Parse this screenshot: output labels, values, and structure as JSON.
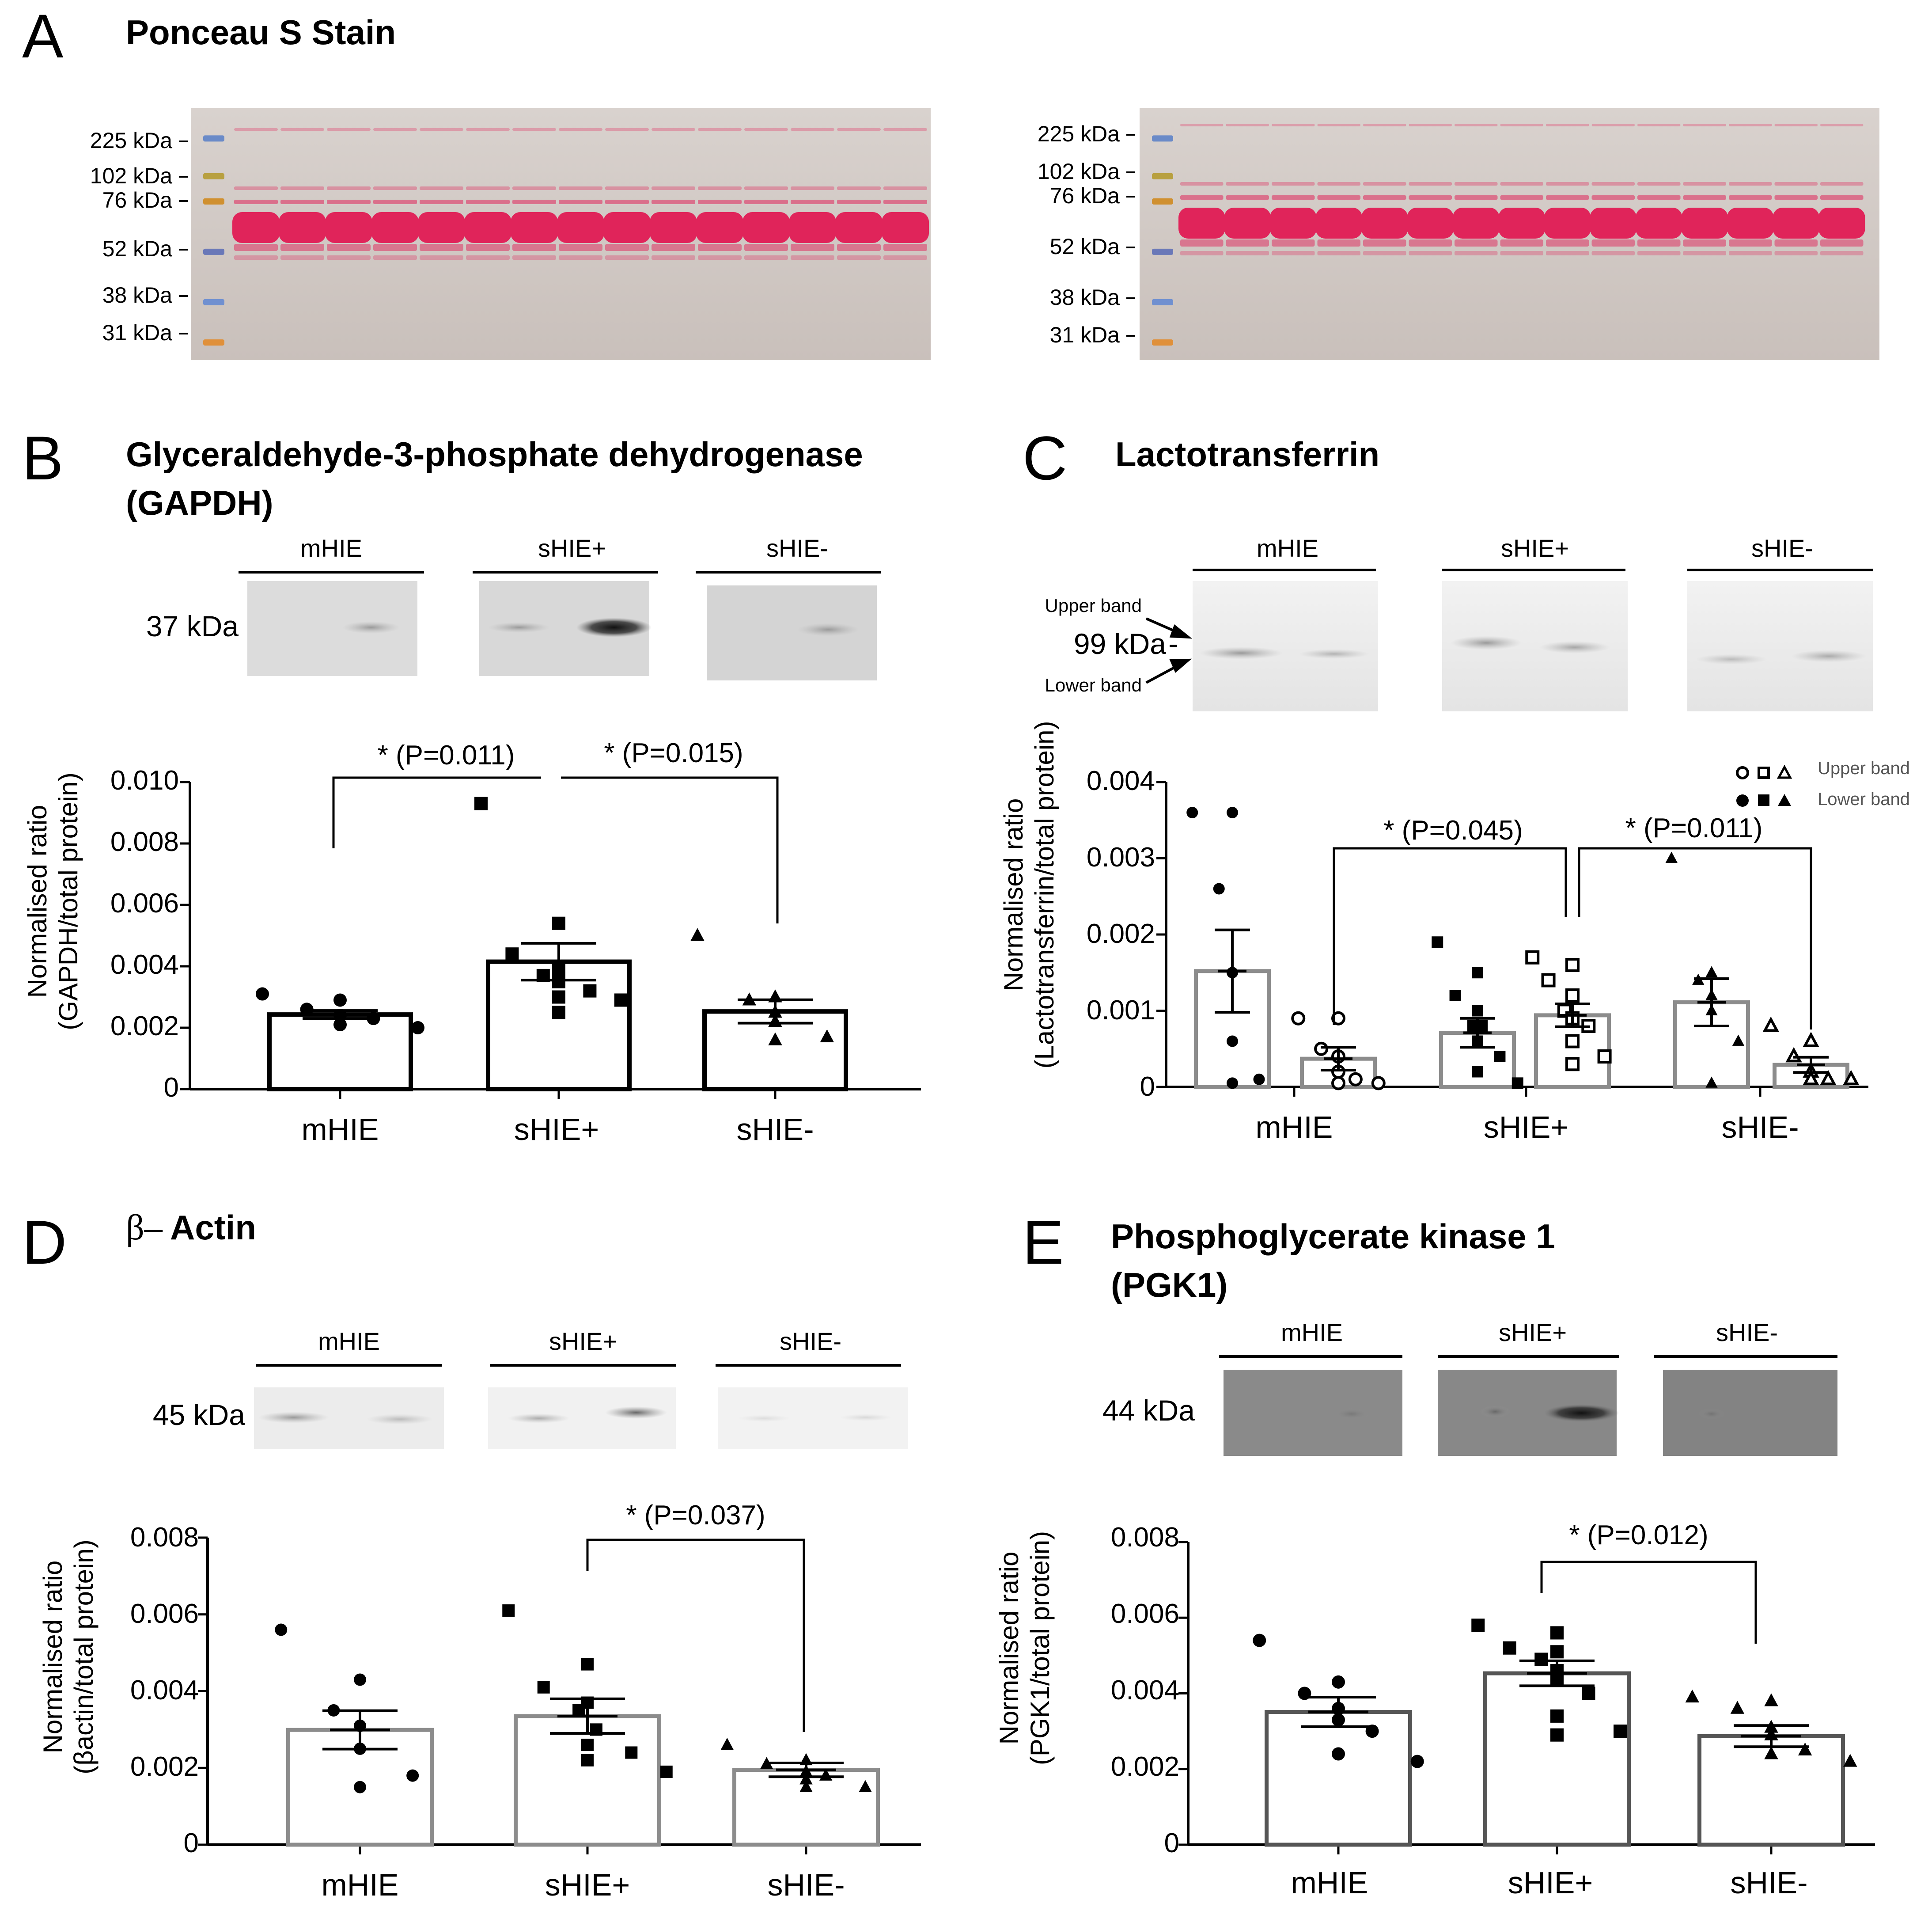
{
  "colors": {
    "black_bar": "#000000",
    "gray_bar": "#8c8c8c",
    "dark_gray_bar": "#555555",
    "ponceau_pink": "#e0245a",
    "membrane": "#d2c8c2"
  },
  "panelA": {
    "letter": "A",
    "title": "Ponceau S Stain",
    "ladder_left": [
      "225 kDa",
      "102 kDa",
      "76 kDa",
      "52 kDa",
      "38 kDa",
      "31 kDa"
    ],
    "ladder_right": [
      "225 kDa",
      "102 kDa",
      "76 kDa",
      "52 kDa",
      "38 kDa",
      "31 kDa"
    ]
  },
  "panelB": {
    "letter": "B",
    "title_line1": "Glyceraldehyde-3-phosphate dehydrogenase",
    "title_line2": "(GAPDH)",
    "mw_label": "37 kDa",
    "blot_groups": [
      "mHIE",
      "sHIE+",
      "sHIE-"
    ],
    "ylabel_line1": "Normalised ratio",
    "ylabel_line2": "(GAPDH/total protein)",
    "yticks": [
      "0",
      "0.002",
      "0.004",
      "0.006",
      "0.008",
      "0.010"
    ],
    "sig1": "* (P=0.011)",
    "sig2": "* (P=0.015)"
  },
  "panelC": {
    "letter": "C",
    "title": "Lactotransferrin",
    "mw_label": "99 kDa",
    "upper_band": "Upper band",
    "lower_band": "Lower band",
    "blot_groups": [
      "mHIE",
      "sHIE+",
      "sHIE-"
    ],
    "ylabel_line1": "Normalised ratio",
    "ylabel_line2": "(Lactotransferrin/total protein)",
    "yticks": [
      "0",
      "0.001",
      "0.002",
      "0.003",
      "0.004"
    ],
    "legend_upper": "Upper band",
    "legend_lower": "Lower band",
    "sig1": "* (P=0.045)",
    "sig2": "* (P=0.011)"
  },
  "panelD": {
    "letter": "D",
    "title_prefix": "β–",
    "title": "Actin",
    "mw_label": "45 kDa",
    "blot_groups": [
      "mHIE",
      "sHIE+",
      "sHIE-"
    ],
    "ylabel_line1": "Normalised ratio",
    "ylabel_line2": "(βactin/total protein)",
    "yticks": [
      "0",
      "0.002",
      "0.004",
      "0.006",
      "0.008"
    ],
    "sig1": "* (P=0.037)"
  },
  "panelE": {
    "letter": "E",
    "title_line1": "Phosphoglycerate kinase 1",
    "title_line2": "(PGK1)",
    "mw_label": "44 kDa",
    "blot_groups": [
      "mHIE",
      "sHIE+",
      "sHIE-"
    ],
    "ylabel_line1": "Normalised ratio",
    "ylabel_line2": "(PGK1/total protein)",
    "yticks": [
      "0",
      "0.002",
      "0.004",
      "0.006",
      "0.008"
    ],
    "sig1": "* (P=0.012)"
  },
  "chart_data": [
    {
      "panel": "B",
      "type": "bar",
      "title": "Glyceraldehyde-3-phosphate dehydrogenase (GAPDH)",
      "ylabel": "Normalised ratio (GAPDH/total protein)",
      "xlabel": "",
      "ylim": [
        0,
        0.01
      ],
      "categories": [
        "mHIE",
        "sHIE+",
        "sHIE-"
      ],
      "values": [
        0.00243,
        0.00415,
        0.00253
      ],
      "sem": [
        0.00013,
        0.0006,
        0.00038
      ],
      "markers": [
        "circle",
        "square",
        "triangle"
      ],
      "points": [
        [
          0.0031,
          0.0029,
          0.0026,
          0.0024,
          0.0024,
          0.0023,
          0.0021,
          0.002
        ],
        [
          0.0093,
          0.0054,
          0.0044,
          0.004,
          0.0037,
          0.0036,
          0.0035,
          0.0032,
          0.003,
          0.0029,
          0.0025
        ],
        [
          0.005,
          0.003,
          0.0029,
          0.0025,
          0.0022,
          0.0017,
          0.0016
        ]
      ],
      "significance": [
        {
          "from": "mHIE",
          "to": "sHIE+",
          "label": "* (P=0.011)"
        },
        {
          "from": "sHIE+",
          "to": "sHIE-",
          "label": "* (P=0.015)"
        }
      ]
    },
    {
      "panel": "C",
      "type": "bar",
      "title": "Lactotransferrin",
      "ylabel": "Normalised ratio (Lactotransferrin/total protein)",
      "xlabel": "",
      "ylim": [
        0,
        0.004
      ],
      "categories": [
        "mHIE",
        "sHIE+",
        "sHIE-"
      ],
      "series": [
        {
          "name": "Lower band",
          "fill": "solid",
          "values": [
            0.00152,
            0.00071,
            0.00111
          ],
          "sem": [
            0.00054,
            0.00019,
            0.00031
          ],
          "points": [
            [
              0.0036,
              0.0036,
              0.0026,
              0.0015,
              0.0006,
              0.0001,
              5e-05
            ],
            [
              0.0019,
              0.0015,
              0.0012,
              0.001,
              0.0008,
              0.0008,
              0.0006,
              0.0004,
              0.0002,
              5e-05
            ],
            [
              0.003,
              0.0015,
              0.0014,
              0.0012,
              0.001,
              0.0006,
              5e-05
            ]
          ]
        },
        {
          "name": "Upper band",
          "fill": "open",
          "values": [
            0.00037,
            0.00094,
            0.00029
          ],
          "sem": [
            0.00015,
            0.00015,
            0.0001
          ],
          "points": [
            [
              0.0009,
              0.0009,
              0.0005,
              0.0004,
              0.0002,
              0.0001,
              5e-05,
              5e-05
            ],
            [
              0.0017,
              0.0016,
              0.0014,
              0.0012,
              0.001,
              0.0009,
              0.0009,
              0.0008,
              0.0006,
              0.0004,
              0.0003
            ],
            [
              0.0008,
              0.0006,
              0.0004,
              0.0002,
              0.0002,
              0.0001,
              0.0001,
              0.0001
            ]
          ]
        }
      ],
      "significance": [
        {
          "from": "mHIE upper",
          "to": "sHIE+ upper",
          "label": "* (P=0.045)"
        },
        {
          "from": "sHIE+ upper",
          "to": "sHIE- upper",
          "label": "* (P=0.011)"
        }
      ]
    },
    {
      "panel": "D",
      "type": "bar",
      "title": "β–Actin",
      "ylabel": "Normalised ratio (βactin/total protein)",
      "xlabel": "",
      "ylim": [
        0,
        0.008
      ],
      "categories": [
        "mHIE",
        "sHIE+",
        "sHIE-"
      ],
      "values": [
        0.00299,
        0.00335,
        0.00195
      ],
      "sem": [
        0.0005,
        0.00045,
        0.00018
      ],
      "markers": [
        "circle",
        "square",
        "triangle"
      ],
      "points": [
        [
          0.0056,
          0.0043,
          0.0035,
          0.0031,
          0.0025,
          0.0018,
          0.0015
        ],
        [
          0.0061,
          0.0047,
          0.0041,
          0.0037,
          0.0035,
          0.003,
          0.0026,
          0.0024,
          0.0022,
          0.0019
        ],
        [
          0.0026,
          0.0022,
          0.0021,
          0.0019,
          0.0019,
          0.0018,
          0.0017,
          0.0015,
          0.0015
        ]
      ],
      "significance": [
        {
          "from": "sHIE+",
          "to": "sHIE-",
          "label": "* (P=0.037)"
        }
      ]
    },
    {
      "panel": "E",
      "type": "bar",
      "title": "Phosphoglycerate kinase 1 (PGK1)",
      "ylabel": "Normalised ratio (PGK1/total protein)",
      "xlabel": "",
      "ylim": [
        0,
        0.008
      ],
      "categories": [
        "mHIE",
        "sHIE+",
        "sHIE-"
      ],
      "values": [
        0.00351,
        0.00453,
        0.00287
      ],
      "sem": [
        0.00039,
        0.00033,
        0.00028
      ],
      "markers": [
        "circle",
        "square",
        "triangle"
      ],
      "points": [
        [
          0.0054,
          0.0043,
          0.004,
          0.0036,
          0.0033,
          0.003,
          0.0024,
          0.0022
        ],
        [
          0.0058,
          0.0056,
          0.0052,
          0.0051,
          0.0049,
          0.0046,
          0.0044,
          0.004,
          0.0034,
          0.003,
          0.0029
        ],
        [
          0.0039,
          0.0038,
          0.0036,
          0.0031,
          0.0029,
          0.0025,
          0.0024,
          0.0022
        ]
      ],
      "significance": [
        {
          "from": "sHIE+",
          "to": "sHIE-",
          "label": "* (P=0.012)"
        }
      ]
    }
  ]
}
